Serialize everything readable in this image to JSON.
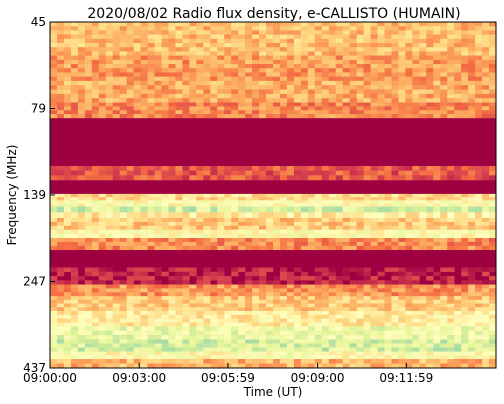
{
  "chart_data": {
    "type": "heatmap",
    "title": "2020/08/02  Radio flux density, e-CALLISTO (HUMAIN)",
    "xlabel": "Time (UT)",
    "ylabel": "Frequency (MHz)",
    "x_start": "09:00:00",
    "x_end": "09:15:00",
    "x_ticks": [
      "09:00:00",
      "09:03:00",
      "09:05:59",
      "09:09:00",
      "09:11:59"
    ],
    "y_ticks": [
      "45",
      "79",
      "139",
      "247",
      "437"
    ],
    "y_tick_values": [
      45,
      79,
      139,
      247,
      437
    ],
    "ylim": [
      45,
      437
    ],
    "colormap": [
      "#9e0142",
      "#d53e4f",
      "#f46d43",
      "#fdae61",
      "#fee08b",
      "#ffffbf",
      "#e6f598",
      "#abdda4",
      "#66c2a5"
    ],
    "frequency_bands": [
      {
        "from": 45,
        "to": 56,
        "intensity": 0.42
      },
      {
        "from": 56,
        "to": 66,
        "intensity": 0.35
      },
      {
        "from": 66,
        "to": 76,
        "intensity": 0.38
      },
      {
        "from": 76,
        "to": 84,
        "intensity": 0.3
      },
      {
        "from": 84,
        "to": 115,
        "intensity": 0.0
      },
      {
        "from": 115,
        "to": 126,
        "intensity": 0.2
      },
      {
        "from": 126,
        "to": 138,
        "intensity": 0.0
      },
      {
        "from": 138,
        "to": 144,
        "intensity": 0.5
      },
      {
        "from": 144,
        "to": 150,
        "intensity": 0.62
      },
      {
        "from": 150,
        "to": 156,
        "intensity": 0.78
      },
      {
        "from": 156,
        "to": 162,
        "intensity": 0.55
      },
      {
        "from": 162,
        "to": 175,
        "intensity": 0.45
      },
      {
        "from": 175,
        "to": 185,
        "intensity": 0.62
      },
      {
        "from": 185,
        "to": 200,
        "intensity": 0.3
      },
      {
        "from": 200,
        "to": 225,
        "intensity": 0.0
      },
      {
        "from": 225,
        "to": 252,
        "intensity": 0.05
      },
      {
        "from": 252,
        "to": 272,
        "intensity": 0.33
      },
      {
        "from": 272,
        "to": 300,
        "intensity": 0.45
      },
      {
        "from": 300,
        "to": 332,
        "intensity": 0.55
      },
      {
        "from": 332,
        "to": 362,
        "intensity": 0.7
      },
      {
        "from": 362,
        "to": 392,
        "intensity": 0.78
      },
      {
        "from": 392,
        "to": 412,
        "intensity": 0.62
      },
      {
        "from": 412,
        "to": 437,
        "intensity": 0.4
      }
    ],
    "grid": false,
    "legend": "none"
  }
}
